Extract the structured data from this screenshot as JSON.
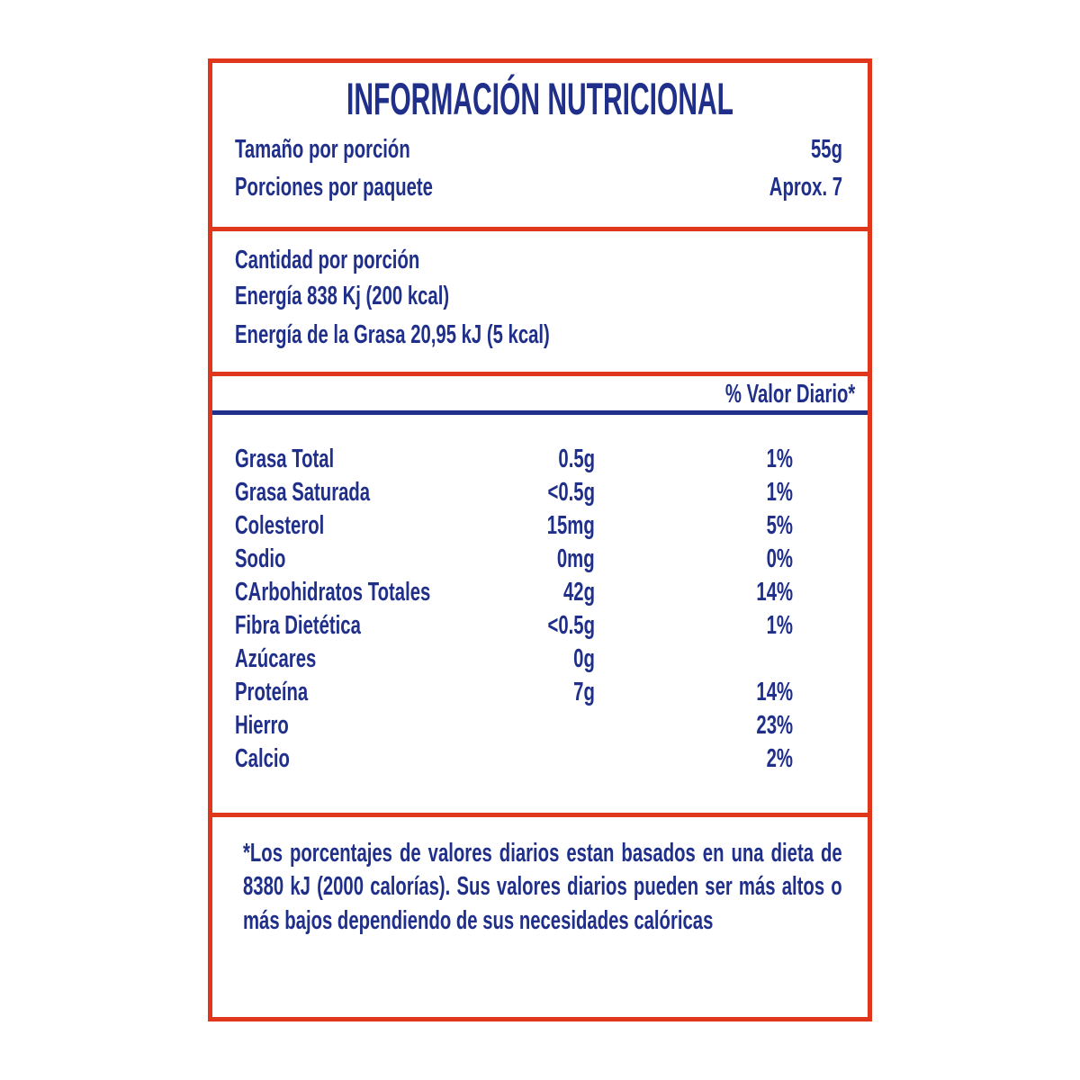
{
  "title": "INFORMACIÓN NUTRICIONAL",
  "serving": [
    {
      "label": "Tamaño por porción",
      "value": "55g"
    },
    {
      "label": "Porciones por paquete",
      "value": "Aprox. 7"
    }
  ],
  "amount": {
    "heading": "Cantidad por porción",
    "energy": "Energía 838 Kj (200 kcal)",
    "fat_energy": "Energía de la Grasa 20,95 kJ (5 kcal)"
  },
  "daily_value_header": "% Valor Diario*",
  "nutrients": [
    {
      "name": "Grasa Total",
      "amount": "0.5g",
      "dv": "1%"
    },
    {
      "name": "Grasa Saturada",
      "amount": "<0.5g",
      "dv": "1%"
    },
    {
      "name": "Colesterol",
      "amount": "15mg",
      "dv": "5%"
    },
    {
      "name": "Sodio",
      "amount": "0mg",
      "dv": "0%"
    },
    {
      "name": "CArbohidratos Totales",
      "amount": "42g",
      "dv": "14%"
    },
    {
      "name": "Fibra Dietética",
      "amount": "<0.5g",
      "dv": "1%"
    },
    {
      "name": "Azúcares",
      "amount": "0g",
      "dv": ""
    },
    {
      "name": "Proteína",
      "amount": "7g",
      "dv": "14%"
    },
    {
      "name": "Hierro",
      "amount": "",
      "dv": "23%"
    },
    {
      "name": "Calcio",
      "amount": "",
      "dv": "2%"
    }
  ],
  "footnote": "*Los porcentajes de valores diarios estan basados en una dieta de 8380 kJ (2000 calorías). Sus valores diarios pueden ser más altos o más bajos dependiendo de sus necesidades calóricas",
  "colors": {
    "border": "#e0361c",
    "text": "#1f2f8a"
  }
}
